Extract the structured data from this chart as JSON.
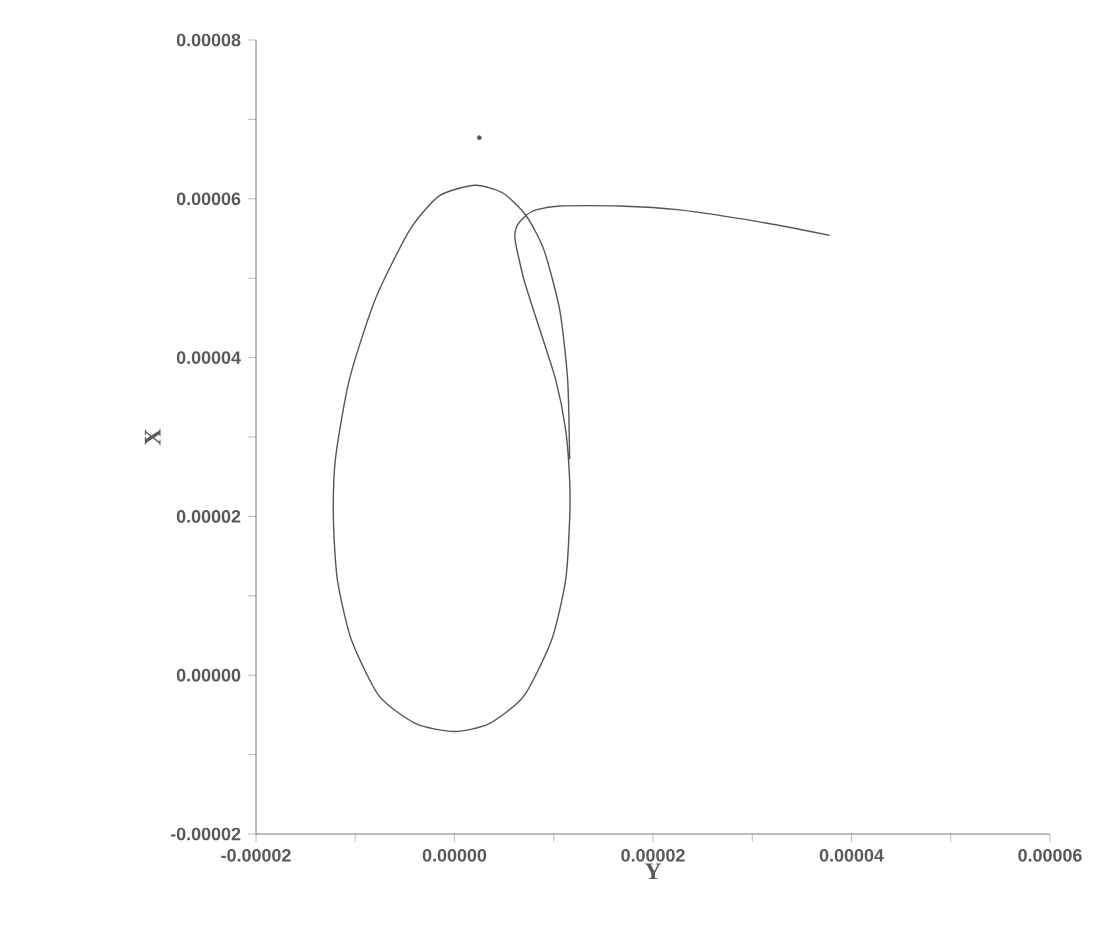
{
  "chart_data": {
    "type": "line",
    "xlabel": "Y",
    "ylabel": "X",
    "xlim": [
      -2e-05,
      6e-05
    ],
    "ylim": [
      -2e-05,
      8e-05
    ],
    "xticks": [
      {
        "value": -2e-05,
        "label": "-0.00002"
      },
      {
        "value": -1e-05,
        "label": null
      },
      {
        "value": 0,
        "label": "0.00000"
      },
      {
        "value": 1e-05,
        "label": null
      },
      {
        "value": 2e-05,
        "label": "0.00002"
      },
      {
        "value": 3e-05,
        "label": null
      },
      {
        "value": 4e-05,
        "label": "0.00004"
      },
      {
        "value": 5e-05,
        "label": null
      },
      {
        "value": 6e-05,
        "label": "0.00006"
      }
    ],
    "yticks": [
      {
        "value": -2e-05,
        "label": "-0.00002"
      },
      {
        "value": -1e-05,
        "label": null
      },
      {
        "value": 0,
        "label": "0.00000"
      },
      {
        "value": 1e-05,
        "label": null
      },
      {
        "value": 2e-05,
        "label": "0.00002"
      },
      {
        "value": 3e-05,
        "label": null
      },
      {
        "value": 4e-05,
        "label": "0.00004"
      },
      {
        "value": 5e-05,
        "label": null
      },
      {
        "value": 6e-05,
        "label": "0.00006"
      },
      {
        "value": 7e-05,
        "label": null
      },
      {
        "value": 8e-05,
        "label": "0.00008"
      }
    ],
    "grid": false,
    "series": [
      {
        "color": "#555555",
        "marker": "none",
        "line_style": "solid",
        "x": [
          3.78e-05,
          3.07e-05,
          2.27e-05,
          1.66e-05,
          1.06e-05,
          8.2e-06,
          7.2e-06,
          6.3e-06,
          6.1e-06,
          7e-06,
          8.6e-06,
          1.02e-05,
          1.12e-05,
          1.16e-05,
          1.16e-05,
          1.12e-05,
          9.8e-06,
          7e-06,
          3.5e-06,
          0,
          -3.9e-06,
          -7.6e-06,
          -1.04e-05,
          -1.18e-05,
          -1.22e-05,
          -1.2e-05,
          -1.06e-05,
          -8e-06,
          -4.5e-06,
          -1.5e-06,
          2.1e-06,
          4.9e-06,
          7.2e-06,
          9e-06,
          1.06e-05,
          1.14e-05,
          1.16e-05
        ],
        "values": [
          5.54e-05,
          5.71e-05,
          5.86e-05,
          5.91e-05,
          5.91e-05,
          5.86e-05,
          5.79e-05,
          5.66e-05,
          5.49e-05,
          4.98e-05,
          4.35e-05,
          3.72e-05,
          3.09e-05,
          2.46e-05,
          1.96e-05,
          1.2e-05,
          4.5e-06,
          -2.6e-06,
          -6.1e-06,
          -7.1e-06,
          -6.1e-06,
          -2.6e-06,
          4.5e-06,
          1.2e-05,
          1.96e-05,
          2.72e-05,
          3.72e-05,
          4.73e-05,
          5.61e-05,
          6.04e-05,
          6.17e-05,
          6.07e-05,
          5.79e-05,
          5.36e-05,
          4.6e-05,
          3.72e-05,
          2.72e-05
        ]
      },
      {
        "type": "scatter",
        "color": "#555555",
        "marker": "circle",
        "x": [
          2.5e-06
        ],
        "values": [
          6.77e-05
        ]
      }
    ]
  }
}
